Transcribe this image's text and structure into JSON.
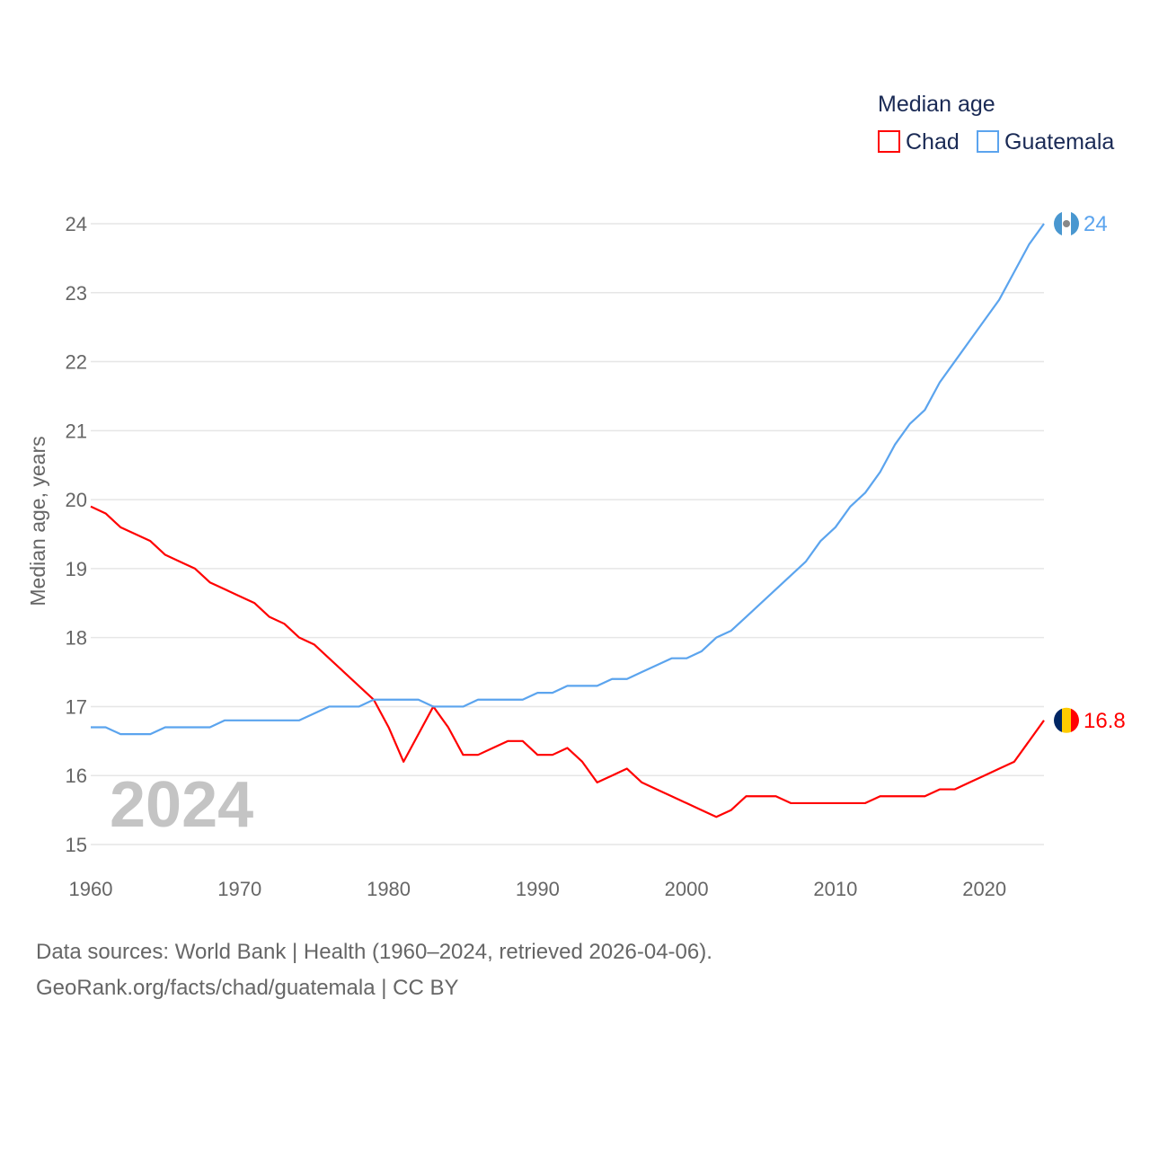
{
  "chart_data": {
    "type": "line",
    "title": "",
    "legend_title": "Median age",
    "legend_placement": "top-right",
    "ylabel": "Median age, years",
    "xlabel": "",
    "xlim": [
      1960,
      2024
    ],
    "ylim": [
      15,
      24
    ],
    "xticks": [
      "1960",
      "1970",
      "1980",
      "1990",
      "2000",
      "2010",
      "2020"
    ],
    "yticks": [
      "15",
      "16",
      "17",
      "18",
      "19",
      "20",
      "21",
      "22",
      "23",
      "24"
    ],
    "grid": true,
    "year_watermark": "2024",
    "x": [
      1960,
      1961,
      1962,
      1963,
      1964,
      1965,
      1966,
      1967,
      1968,
      1969,
      1970,
      1971,
      1972,
      1973,
      1974,
      1975,
      1976,
      1977,
      1978,
      1979,
      1980,
      1981,
      1982,
      1983,
      1984,
      1985,
      1986,
      1987,
      1988,
      1989,
      1990,
      1991,
      1992,
      1993,
      1994,
      1995,
      1996,
      1997,
      1998,
      1999,
      2000,
      2001,
      2002,
      2003,
      2004,
      2005,
      2006,
      2007,
      2008,
      2009,
      2010,
      2011,
      2012,
      2013,
      2014,
      2015,
      2016,
      2017,
      2018,
      2019,
      2020,
      2021,
      2022,
      2023,
      2024
    ],
    "series": [
      {
        "name": "Chad",
        "color": "#ff0000",
        "end_label": "16.8",
        "values": [
          19.9,
          19.8,
          19.6,
          19.5,
          19.4,
          19.2,
          19.1,
          19.0,
          18.8,
          18.7,
          18.6,
          18.5,
          18.3,
          18.2,
          18.0,
          17.9,
          17.7,
          17.5,
          17.3,
          17.1,
          16.7,
          16.2,
          16.6,
          17.0,
          16.7,
          16.3,
          16.3,
          16.4,
          16.5,
          16.5,
          16.3,
          16.3,
          16.4,
          16.2,
          15.9,
          16.0,
          16.1,
          15.9,
          15.8,
          15.7,
          15.6,
          15.5,
          15.4,
          15.5,
          15.7,
          15.7,
          15.7,
          15.6,
          15.6,
          15.6,
          15.6,
          15.6,
          15.6,
          15.7,
          15.7,
          15.7,
          15.7,
          15.8,
          15.8,
          15.9,
          16.0,
          16.1,
          16.2,
          16.5,
          16.8
        ]
      },
      {
        "name": "Guatemala",
        "color": "#5ba4ee",
        "end_label": "24",
        "values": [
          16.7,
          16.7,
          16.6,
          16.6,
          16.6,
          16.7,
          16.7,
          16.7,
          16.7,
          16.8,
          16.8,
          16.8,
          16.8,
          16.8,
          16.8,
          16.9,
          17.0,
          17.0,
          17.0,
          17.1,
          17.1,
          17.1,
          17.1,
          17.0,
          17.0,
          17.0,
          17.1,
          17.1,
          17.1,
          17.1,
          17.2,
          17.2,
          17.3,
          17.3,
          17.3,
          17.4,
          17.4,
          17.5,
          17.6,
          17.7,
          17.7,
          17.8,
          18.0,
          18.1,
          18.3,
          18.5,
          18.7,
          18.9,
          19.1,
          19.4,
          19.6,
          19.9,
          20.1,
          20.4,
          20.8,
          21.1,
          21.3,
          21.7,
          22.0,
          22.3,
          22.6,
          22.9,
          23.3,
          23.7,
          24.0
        ]
      }
    ]
  },
  "footer": {
    "line1": "Data sources: World Bank | Health (1960–2024, retrieved 2026-04-06).",
    "line2": "GeoRank.org/facts/chad/guatemala | CC BY"
  }
}
